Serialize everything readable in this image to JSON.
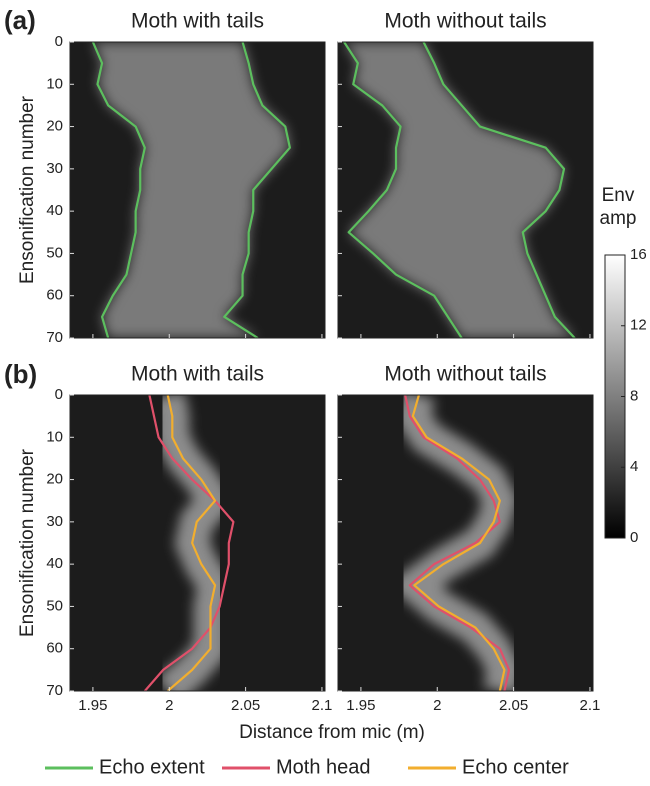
{
  "figure": {
    "panel_labels": [
      "(a)",
      "(b)"
    ],
    "x_label": "Distance from mic (m)",
    "y_label": "Ensonification number"
  },
  "colorbar": {
    "title": [
      "Env",
      "amp"
    ],
    "ylim": [
      0,
      16
    ],
    "yticks": [
      0,
      4,
      8,
      12,
      16
    ]
  },
  "chart_data": [
    {
      "type": "line",
      "title": "Moth with tails",
      "xlim": [
        1.935,
        2.102
      ],
      "ylim": [
        0,
        70
      ],
      "xticks": [
        1.95,
        2,
        2.05,
        2.1
      ],
      "yticks": [
        0,
        10,
        20,
        30,
        40,
        50,
        60,
        70
      ],
      "ensonification": [
        0,
        5,
        10,
        15,
        20,
        25,
        30,
        35,
        40,
        45,
        50,
        55,
        60,
        65,
        70
      ],
      "series": [
        {
          "name": "Echo extent",
          "color": "#5cbf5e",
          "values": [
            1.95,
            1.956,
            1.953,
            1.96,
            1.978,
            1.984,
            1.981,
            1.981,
            1.978,
            1.978,
            1.975,
            1.972,
            1.963,
            1.956,
            1.96
          ]
        },
        {
          "name": "Echo extent",
          "color": "#5cbf5e",
          "values": [
            2.048,
            2.052,
            2.055,
            2.061,
            2.076,
            2.079,
            2.067,
            2.055,
            2.055,
            2.052,
            2.052,
            2.048,
            2.048,
            2.036,
            2.058
          ]
        }
      ]
    },
    {
      "type": "line",
      "title": "Moth without tails",
      "xlim": [
        1.935,
        2.102
      ],
      "ylim": [
        0,
        70
      ],
      "xticks": [
        1.95,
        2,
        2.05,
        2.1
      ],
      "yticks": [
        0,
        10,
        20,
        30,
        40,
        50,
        60,
        70
      ],
      "ensonification": [
        0,
        5,
        10,
        15,
        20,
        25,
        30,
        35,
        40,
        45,
        50,
        55,
        60,
        65,
        70
      ],
      "series": [
        {
          "name": "Echo extent",
          "color": "#5cbf5e",
          "values": [
            1.939,
            1.948,
            1.945,
            1.964,
            1.976,
            1.973,
            1.973,
            1.967,
            1.955,
            1.942,
            1.958,
            1.973,
            1.998,
            2.007,
            2.016
          ]
        },
        {
          "name": "Echo extent",
          "color": "#5cbf5e",
          "values": [
            1.991,
            1.998,
            2.004,
            2.016,
            2.028,
            2.071,
            2.083,
            2.08,
            2.071,
            2.056,
            2.059,
            2.065,
            2.071,
            2.077,
            2.09
          ]
        }
      ]
    },
    {
      "type": "line",
      "title": "Moth with tails",
      "xlim": [
        1.935,
        2.102
      ],
      "ylim": [
        0,
        70
      ],
      "xticks": [
        1.95,
        2,
        2.05,
        2.1
      ],
      "yticks": [
        0,
        10,
        20,
        30,
        40,
        50,
        60,
        70
      ],
      "ensonification": [
        0,
        5,
        10,
        15,
        20,
        25,
        30,
        35,
        40,
        45,
        50,
        55,
        60,
        65,
        70
      ],
      "series": [
        {
          "name": "Moth head",
          "color": "#e0506a",
          "values": [
            1.987,
            1.99,
            1.993,
            2.002,
            2.015,
            2.03,
            2.042,
            2.039,
            2.039,
            2.036,
            2.033,
            2.027,
            2.015,
            1.996,
            1.984
          ]
        },
        {
          "name": "Echo center",
          "color": "#f2ae2e",
          "values": [
            1.999,
            2.002,
            2.002,
            2.009,
            2.021,
            2.03,
            2.018,
            2.015,
            2.021,
            2.03,
            2.027,
            2.027,
            2.027,
            2.015,
            1.999
          ]
        }
      ]
    },
    {
      "type": "line",
      "title": "Moth without tails",
      "xlim": [
        1.935,
        2.102
      ],
      "ylim": [
        0,
        70
      ],
      "xticks": [
        1.95,
        2,
        2.05,
        2.1
      ],
      "yticks": [
        0,
        10,
        20,
        30,
        40,
        50,
        60,
        70
      ],
      "ensonification": [
        0,
        5,
        10,
        15,
        20,
        25,
        30,
        35,
        40,
        45,
        50,
        55,
        60,
        65,
        70
      ],
      "series": [
        {
          "name": "Moth head",
          "color": "#e0506a",
          "values": [
            1.979,
            1.982,
            1.991,
            2.013,
            2.028,
            2.037,
            2.041,
            2.025,
            1.998,
            1.982,
            1.998,
            2.022,
            2.041,
            2.047,
            2.044
          ]
        },
        {
          "name": "Echo center",
          "color": "#f2ae2e",
          "values": [
            1.988,
            1.984,
            1.993,
            2.016,
            2.034,
            2.041,
            2.037,
            2.028,
            2.004,
            1.985,
            2.001,
            2.025,
            2.037,
            2.044,
            2.041
          ]
        }
      ]
    }
  ]
}
